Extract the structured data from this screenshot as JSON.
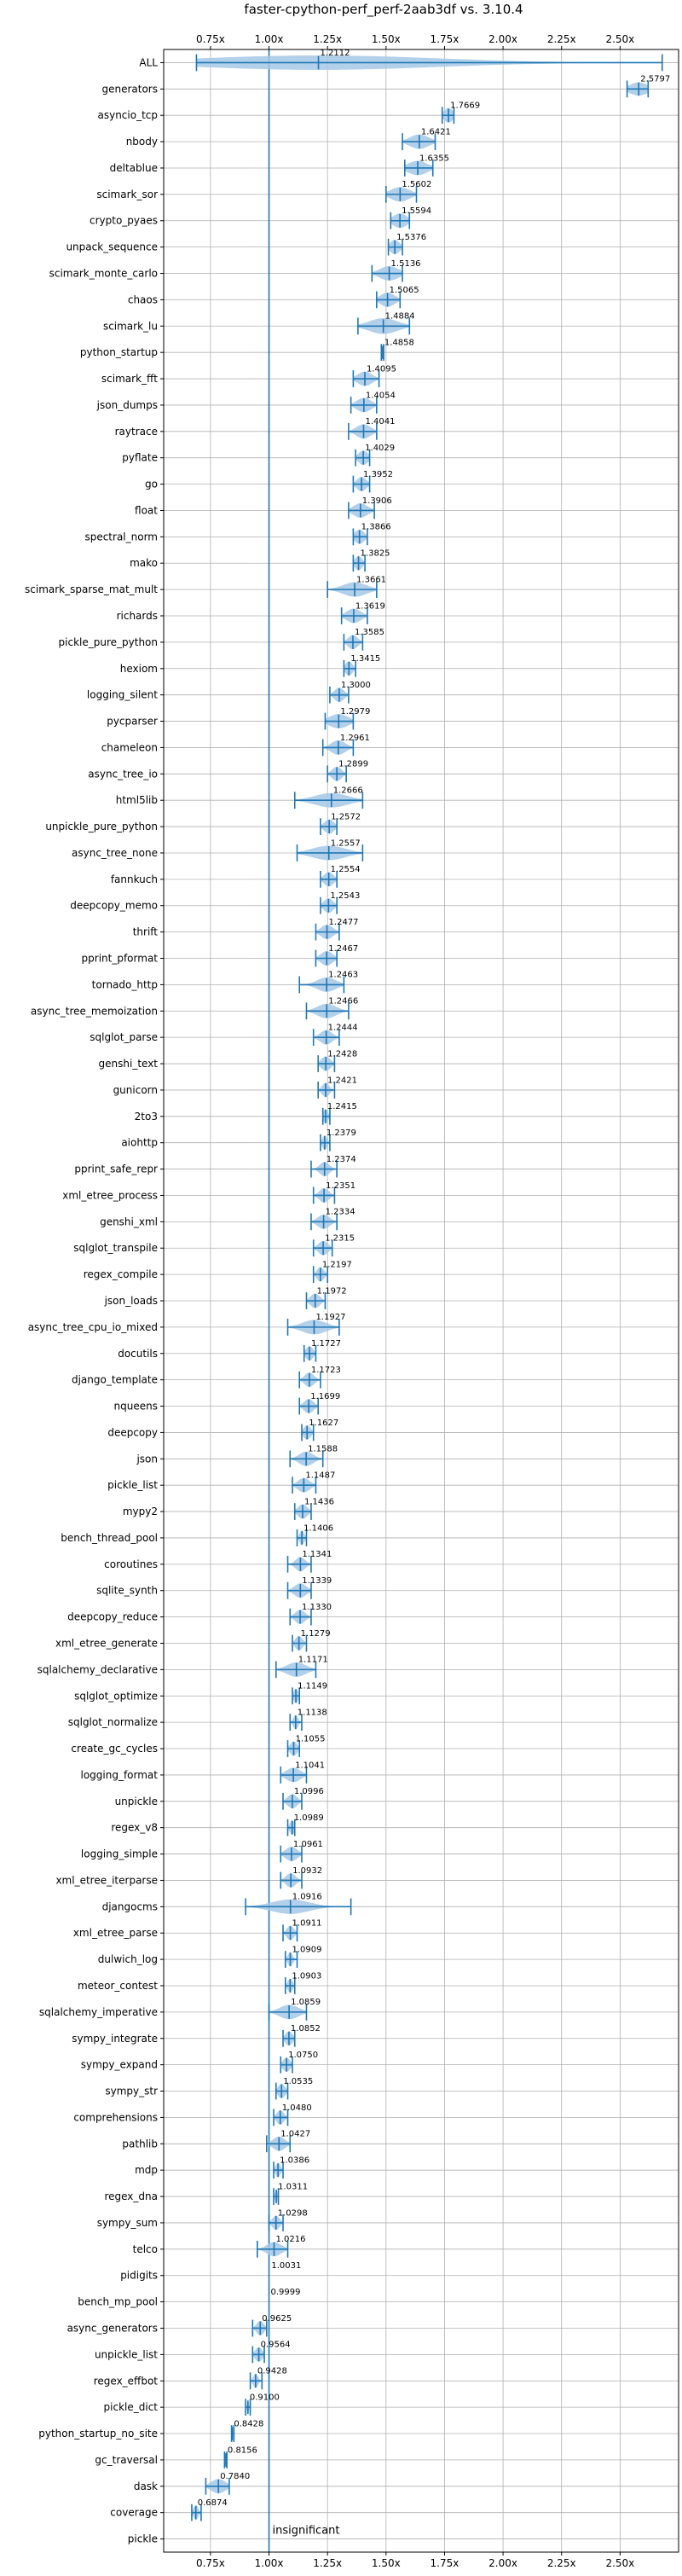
{
  "chart_data": {
    "type": "violin",
    "title": "faster-cpython-perf_perf-2aab3df vs. 3.10.4",
    "x_axis": {
      "min": 0.55,
      "max": 2.75,
      "ticks": [
        0.75,
        1.0,
        1.25,
        1.5,
        1.75,
        2.0,
        2.25,
        2.5
      ],
      "tick_labels": [
        "0.75x",
        "1.00x",
        "1.25x",
        "1.50x",
        "1.75x",
        "2.00x",
        "2.25x",
        "2.50x"
      ],
      "grid": true,
      "reference_line": 1.0
    },
    "annotation": "insignificant",
    "color": "#1f77b4",
    "fill_color": "#a6c8e6",
    "benchmarks": [
      {
        "name": "ALL",
        "label": "1.2112",
        "center": 1.2112,
        "min": 0.69,
        "max": 2.68,
        "spread": 0.5,
        "width": 0.55
      },
      {
        "name": "generators",
        "label": "2.5797",
        "center": 2.5797,
        "min": 2.53,
        "max": 2.62,
        "spread": 0.04,
        "width": 0.5
      },
      {
        "name": "asyncio_tcp",
        "label": "1.7669",
        "center": 1.7669,
        "min": 1.74,
        "max": 1.79,
        "spread": 0.02,
        "width": 0.55
      },
      {
        "name": "nbody",
        "label": "1.6421",
        "center": 1.6421,
        "min": 1.57,
        "max": 1.71,
        "spread": 0.04,
        "width": 0.55
      },
      {
        "name": "deltablue",
        "label": "1.6355",
        "center": 1.6355,
        "min": 1.58,
        "max": 1.7,
        "spread": 0.04,
        "width": 0.55
      },
      {
        "name": "scimark_sor",
        "label": "1.5602",
        "center": 1.5602,
        "min": 1.5,
        "max": 1.63,
        "spread": 0.04,
        "width": 0.55
      },
      {
        "name": "crypto_pyaes",
        "label": "1.5594",
        "center": 1.5594,
        "min": 1.52,
        "max": 1.6,
        "spread": 0.03,
        "width": 0.55
      },
      {
        "name": "unpack_sequence",
        "label": "1.5376",
        "center": 1.5376,
        "min": 1.51,
        "max": 1.57,
        "spread": 0.02,
        "width": 0.55
      },
      {
        "name": "scimark_monte_carlo",
        "label": "1.5136",
        "center": 1.5136,
        "min": 1.44,
        "max": 1.57,
        "spread": 0.04,
        "width": 0.55
      },
      {
        "name": "chaos",
        "label": "1.5065",
        "center": 1.5065,
        "min": 1.46,
        "max": 1.56,
        "spread": 0.03,
        "width": 0.55
      },
      {
        "name": "scimark_lu",
        "label": "1.4884",
        "center": 1.4884,
        "min": 1.38,
        "max": 1.6,
        "spread": 0.06,
        "width": 0.6
      },
      {
        "name": "python_startup",
        "label": "1.4858",
        "center": 1.4858,
        "min": 1.48,
        "max": 1.49,
        "spread": 0.004,
        "width": 0.5
      },
      {
        "name": "scimark_fft",
        "label": "1.4095",
        "center": 1.4095,
        "min": 1.36,
        "max": 1.47,
        "spread": 0.03,
        "width": 0.55
      },
      {
        "name": "json_dumps",
        "label": "1.4054",
        "center": 1.4054,
        "min": 1.35,
        "max": 1.46,
        "spread": 0.03,
        "width": 0.55
      },
      {
        "name": "raytrace",
        "label": "1.4041",
        "center": 1.4041,
        "min": 1.34,
        "max": 1.46,
        "spread": 0.03,
        "width": 0.55
      },
      {
        "name": "pyflate",
        "label": "1.4029",
        "center": 1.4029,
        "min": 1.37,
        "max": 1.43,
        "spread": 0.02,
        "width": 0.55
      },
      {
        "name": "go",
        "label": "1.3952",
        "center": 1.3952,
        "min": 1.36,
        "max": 1.43,
        "spread": 0.02,
        "width": 0.55
      },
      {
        "name": "float",
        "label": "1.3906",
        "center": 1.3906,
        "min": 1.34,
        "max": 1.45,
        "spread": 0.03,
        "width": 0.55
      },
      {
        "name": "spectral_norm",
        "label": "1.3866",
        "center": 1.3866,
        "min": 1.36,
        "max": 1.42,
        "spread": 0.02,
        "width": 0.55
      },
      {
        "name": "mako",
        "label": "1.3825",
        "center": 1.3825,
        "min": 1.36,
        "max": 1.41,
        "spread": 0.015,
        "width": 0.55
      },
      {
        "name": "scimark_sparse_mat_mult",
        "label": "1.3661",
        "center": 1.3661,
        "min": 1.25,
        "max": 1.46,
        "spread": 0.05,
        "width": 0.55
      },
      {
        "name": "richards",
        "label": "1.3619",
        "center": 1.3619,
        "min": 1.31,
        "max": 1.42,
        "spread": 0.03,
        "width": 0.55
      },
      {
        "name": "pickle_pure_python",
        "label": "1.3585",
        "center": 1.3585,
        "min": 1.32,
        "max": 1.4,
        "spread": 0.02,
        "width": 0.55
      },
      {
        "name": "hexiom",
        "label": "1.3415",
        "center": 1.3415,
        "min": 1.32,
        "max": 1.37,
        "spread": 0.015,
        "width": 0.55
      },
      {
        "name": "logging_silent",
        "label": "1.3000",
        "center": 1.3,
        "min": 1.26,
        "max": 1.34,
        "spread": 0.02,
        "width": 0.55
      },
      {
        "name": "pycparser",
        "label": "1.2979",
        "center": 1.2979,
        "min": 1.24,
        "max": 1.36,
        "spread": 0.04,
        "width": 0.55
      },
      {
        "name": "chameleon",
        "label": "1.2961",
        "center": 1.2961,
        "min": 1.23,
        "max": 1.36,
        "spread": 0.03,
        "width": 0.55
      },
      {
        "name": "async_tree_io",
        "label": "1.2899",
        "center": 1.2899,
        "min": 1.25,
        "max": 1.33,
        "spread": 0.02,
        "width": 0.55
      },
      {
        "name": "html5lib",
        "label": "1.2666",
        "center": 1.2666,
        "min": 1.11,
        "max": 1.4,
        "spread": 0.07,
        "width": 0.55
      },
      {
        "name": "unpickle_pure_python",
        "label": "1.2572",
        "center": 1.2572,
        "min": 1.22,
        "max": 1.29,
        "spread": 0.02,
        "width": 0.55
      },
      {
        "name": "async_tree_none",
        "label": "1.2557",
        "center": 1.2557,
        "min": 1.12,
        "max": 1.4,
        "spread": 0.07,
        "width": 0.55
      },
      {
        "name": "fannkuch",
        "label": "1.2554",
        "center": 1.2554,
        "min": 1.22,
        "max": 1.29,
        "spread": 0.02,
        "width": 0.55
      },
      {
        "name": "deepcopy_memo",
        "label": "1.2543",
        "center": 1.2543,
        "min": 1.22,
        "max": 1.29,
        "spread": 0.02,
        "width": 0.55
      },
      {
        "name": "thrift",
        "label": "1.2477",
        "center": 1.2477,
        "min": 1.2,
        "max": 1.3,
        "spread": 0.025,
        "width": 0.55
      },
      {
        "name": "pprint_pformat",
        "label": "1.2467",
        "center": 1.2467,
        "min": 1.2,
        "max": 1.29,
        "spread": 0.025,
        "width": 0.55
      },
      {
        "name": "tornado_http",
        "label": "1.2463",
        "center": 1.2463,
        "min": 1.13,
        "max": 1.32,
        "spread": 0.04,
        "width": 0.55
      },
      {
        "name": "async_tree_memoization",
        "label": "1.2466",
        "center": 1.2466,
        "min": 1.16,
        "max": 1.34,
        "spread": 0.04,
        "width": 0.55
      },
      {
        "name": "sqlglot_parse",
        "label": "1.2444",
        "center": 1.2444,
        "min": 1.19,
        "max": 1.3,
        "spread": 0.025,
        "width": 0.55
      },
      {
        "name": "genshi_text",
        "label": "1.2428",
        "center": 1.2428,
        "min": 1.21,
        "max": 1.28,
        "spread": 0.02,
        "width": 0.55
      },
      {
        "name": "gunicorn",
        "label": "1.2421",
        "center": 1.2421,
        "min": 1.21,
        "max": 1.28,
        "spread": 0.015,
        "width": 0.55
      },
      {
        "name": "2to3",
        "label": "1.2415",
        "center": 1.2415,
        "min": 1.23,
        "max": 1.26,
        "spread": 0.01,
        "width": 0.55
      },
      {
        "name": "aiohttp",
        "label": "1.2379",
        "center": 1.2379,
        "min": 1.22,
        "max": 1.26,
        "spread": 0.01,
        "width": 0.55
      },
      {
        "name": "pprint_safe_repr",
        "label": "1.2374",
        "center": 1.2374,
        "min": 1.18,
        "max": 1.29,
        "spread": 0.02,
        "width": 0.55
      },
      {
        "name": "xml_etree_process",
        "label": "1.2351",
        "center": 1.2351,
        "min": 1.19,
        "max": 1.28,
        "spread": 0.02,
        "width": 0.55
      },
      {
        "name": "genshi_xml",
        "label": "1.2334",
        "center": 1.2334,
        "min": 1.18,
        "max": 1.29,
        "spread": 0.025,
        "width": 0.55
      },
      {
        "name": "sqlglot_transpile",
        "label": "1.2315",
        "center": 1.2315,
        "min": 1.19,
        "max": 1.27,
        "spread": 0.02,
        "width": 0.55
      },
      {
        "name": "regex_compile",
        "label": "1.2197",
        "center": 1.2197,
        "min": 1.19,
        "max": 1.25,
        "spread": 0.015,
        "width": 0.55
      },
      {
        "name": "json_loads",
        "label": "1.1972",
        "center": 1.1972,
        "min": 1.16,
        "max": 1.24,
        "spread": 0.02,
        "width": 0.55
      },
      {
        "name": "async_tree_cpu_io_mixed",
        "label": "1.1927",
        "center": 1.1927,
        "min": 1.08,
        "max": 1.3,
        "spread": 0.05,
        "width": 0.55
      },
      {
        "name": "docutils",
        "label": "1.1727",
        "center": 1.1727,
        "min": 1.15,
        "max": 1.2,
        "spread": 0.015,
        "width": 0.55
      },
      {
        "name": "django_template",
        "label": "1.1723",
        "center": 1.1723,
        "min": 1.13,
        "max": 1.22,
        "spread": 0.02,
        "width": 0.55
      },
      {
        "name": "nqueens",
        "label": "1.1699",
        "center": 1.1699,
        "min": 1.13,
        "max": 1.21,
        "spread": 0.02,
        "width": 0.55
      },
      {
        "name": "deepcopy",
        "label": "1.1627",
        "center": 1.1627,
        "min": 1.14,
        "max": 1.19,
        "spread": 0.015,
        "width": 0.55
      },
      {
        "name": "json",
        "label": "1.1588",
        "center": 1.1588,
        "min": 1.09,
        "max": 1.23,
        "spread": 0.03,
        "width": 0.55
      },
      {
        "name": "pickle_list",
        "label": "1.1487",
        "center": 1.1487,
        "min": 1.1,
        "max": 1.2,
        "spread": 0.025,
        "width": 0.55
      },
      {
        "name": "mypy2",
        "label": "1.1436",
        "center": 1.1436,
        "min": 1.11,
        "max": 1.18,
        "spread": 0.02,
        "width": 0.55
      },
      {
        "name": "bench_thread_pool",
        "label": "1.1406",
        "center": 1.1406,
        "min": 1.12,
        "max": 1.16,
        "spread": 0.01,
        "width": 0.55
      },
      {
        "name": "coroutines",
        "label": "1.1341",
        "center": 1.1341,
        "min": 1.08,
        "max": 1.18,
        "spread": 0.02,
        "width": 0.55
      },
      {
        "name": "sqlite_synth",
        "label": "1.1339",
        "center": 1.1339,
        "min": 1.08,
        "max": 1.18,
        "spread": 0.025,
        "width": 0.55
      },
      {
        "name": "deepcopy_reduce",
        "label": "1.1330",
        "center": 1.133,
        "min": 1.09,
        "max": 1.18,
        "spread": 0.02,
        "width": 0.55
      },
      {
        "name": "xml_etree_generate",
        "label": "1.1279",
        "center": 1.1279,
        "min": 1.1,
        "max": 1.16,
        "spread": 0.015,
        "width": 0.55
      },
      {
        "name": "sqlalchemy_declarative",
        "label": "1.1171",
        "center": 1.1171,
        "min": 1.03,
        "max": 1.2,
        "spread": 0.04,
        "width": 0.55
      },
      {
        "name": "sqlglot_optimize",
        "label": "1.1149",
        "center": 1.1149,
        "min": 1.1,
        "max": 1.13,
        "spread": 0.01,
        "width": 0.55
      },
      {
        "name": "sqlglot_normalize",
        "label": "1.1138",
        "center": 1.1138,
        "min": 1.09,
        "max": 1.14,
        "spread": 0.01,
        "width": 0.55
      },
      {
        "name": "create_gc_cycles",
        "label": "1.1055",
        "center": 1.1055,
        "min": 1.08,
        "max": 1.13,
        "spread": 0.015,
        "width": 0.55
      },
      {
        "name": "logging_format",
        "label": "1.1041",
        "center": 1.1041,
        "min": 1.05,
        "max": 1.16,
        "spread": 0.03,
        "width": 0.55
      },
      {
        "name": "unpickle",
        "label": "1.0996",
        "center": 1.0996,
        "min": 1.06,
        "max": 1.14,
        "spread": 0.02,
        "width": 0.55
      },
      {
        "name": "regex_v8",
        "label": "1.0989",
        "center": 1.0989,
        "min": 1.08,
        "max": 1.11,
        "spread": 0.01,
        "width": 0.55
      },
      {
        "name": "logging_simple",
        "label": "1.0961",
        "center": 1.0961,
        "min": 1.05,
        "max": 1.14,
        "spread": 0.025,
        "width": 0.55
      },
      {
        "name": "xml_etree_iterparse",
        "label": "1.0932",
        "center": 1.0932,
        "min": 1.05,
        "max": 1.14,
        "spread": 0.02,
        "width": 0.55
      },
      {
        "name": "djangocms",
        "label": "1.0916",
        "center": 1.0916,
        "min": 0.9,
        "max": 1.35,
        "spread": 0.08,
        "width": 0.55
      },
      {
        "name": "xml_etree_parse",
        "label": "1.0911",
        "center": 1.0911,
        "min": 1.06,
        "max": 1.12,
        "spread": 0.015,
        "width": 0.55
      },
      {
        "name": "dulwich_log",
        "label": "1.0909",
        "center": 1.0909,
        "min": 1.07,
        "max": 1.12,
        "spread": 0.01,
        "width": 0.55
      },
      {
        "name": "meteor_contest",
        "label": "1.0903",
        "center": 1.0903,
        "min": 1.07,
        "max": 1.11,
        "spread": 0.01,
        "width": 0.55
      },
      {
        "name": "sqlalchemy_imperative",
        "label": "1.0859",
        "center": 1.0859,
        "min": 1.0,
        "max": 1.16,
        "spread": 0.04,
        "width": 0.55
      },
      {
        "name": "sympy_integrate",
        "label": "1.0852",
        "center": 1.0852,
        "min": 1.06,
        "max": 1.11,
        "spread": 0.015,
        "width": 0.55
      },
      {
        "name": "sympy_expand",
        "label": "1.0750",
        "center": 1.075,
        "min": 1.05,
        "max": 1.1,
        "spread": 0.015,
        "width": 0.55
      },
      {
        "name": "sympy_str",
        "label": "1.0535",
        "center": 1.0535,
        "min": 1.03,
        "max": 1.08,
        "spread": 0.015,
        "width": 0.55
      },
      {
        "name": "comprehensions",
        "label": "1.0480",
        "center": 1.048,
        "min": 1.02,
        "max": 1.08,
        "spread": 0.015,
        "width": 0.55
      },
      {
        "name": "pathlib",
        "label": "1.0427",
        "center": 1.0427,
        "min": 0.99,
        "max": 1.09,
        "spread": 0.025,
        "width": 0.55
      },
      {
        "name": "mdp",
        "label": "1.0386",
        "center": 1.0386,
        "min": 1.02,
        "max": 1.06,
        "spread": 0.01,
        "width": 0.55
      },
      {
        "name": "regex_dna",
        "label": "1.0311",
        "center": 1.0311,
        "min": 1.02,
        "max": 1.04,
        "spread": 0.005,
        "width": 0.55
      },
      {
        "name": "sympy_sum",
        "label": "1.0298",
        "center": 1.0298,
        "min": 1.0,
        "max": 1.06,
        "spread": 0.015,
        "width": 0.55
      },
      {
        "name": "telco",
        "label": "1.0216",
        "center": 1.0216,
        "min": 0.95,
        "max": 1.08,
        "spread": 0.03,
        "width": 0.55
      },
      {
        "name": "pidigits",
        "label": "1.0031",
        "center": 1.0031,
        "min": 1.0,
        "max": 1.01,
        "spread": 0.0,
        "width": 0.0
      },
      {
        "name": "bench_mp_pool",
        "label": "0.9999",
        "center": 0.9999,
        "min": 1.0,
        "max": 1.0,
        "spread": 0.0,
        "width": 0.0
      },
      {
        "name": "async_generators",
        "label": "0.9625",
        "center": 0.9625,
        "min": 0.93,
        "max": 0.99,
        "spread": 0.015,
        "width": 0.55
      },
      {
        "name": "unpickle_list",
        "label": "0.9564",
        "center": 0.9564,
        "min": 0.93,
        "max": 0.98,
        "spread": 0.015,
        "width": 0.55
      },
      {
        "name": "regex_effbot",
        "label": "0.9428",
        "center": 0.9428,
        "min": 0.92,
        "max": 0.97,
        "spread": 0.01,
        "width": 0.55
      },
      {
        "name": "pickle_dict",
        "label": "0.9100",
        "center": 0.91,
        "min": 0.9,
        "max": 0.92,
        "spread": 0.004,
        "width": 0.55
      },
      {
        "name": "python_startup_no_site",
        "label": "0.8428",
        "center": 0.8428,
        "min": 0.84,
        "max": 0.85,
        "spread": 0.003,
        "width": 0.5
      },
      {
        "name": "gc_traversal",
        "label": "0.8156",
        "center": 0.8156,
        "min": 0.81,
        "max": 0.82,
        "spread": 0.003,
        "width": 0.5
      },
      {
        "name": "dask",
        "label": "0.7840",
        "center": 0.784,
        "min": 0.73,
        "max": 0.83,
        "spread": 0.03,
        "width": 0.55
      },
      {
        "name": "coverage",
        "label": "0.6874",
        "center": 0.6874,
        "min": 0.67,
        "max": 0.71,
        "spread": 0.01,
        "width": 0.55
      },
      {
        "name": "pickle",
        "label": "",
        "center": 1.0,
        "min": 1.0,
        "max": 1.0,
        "spread": 0.0,
        "width": 0.0
      }
    ]
  }
}
